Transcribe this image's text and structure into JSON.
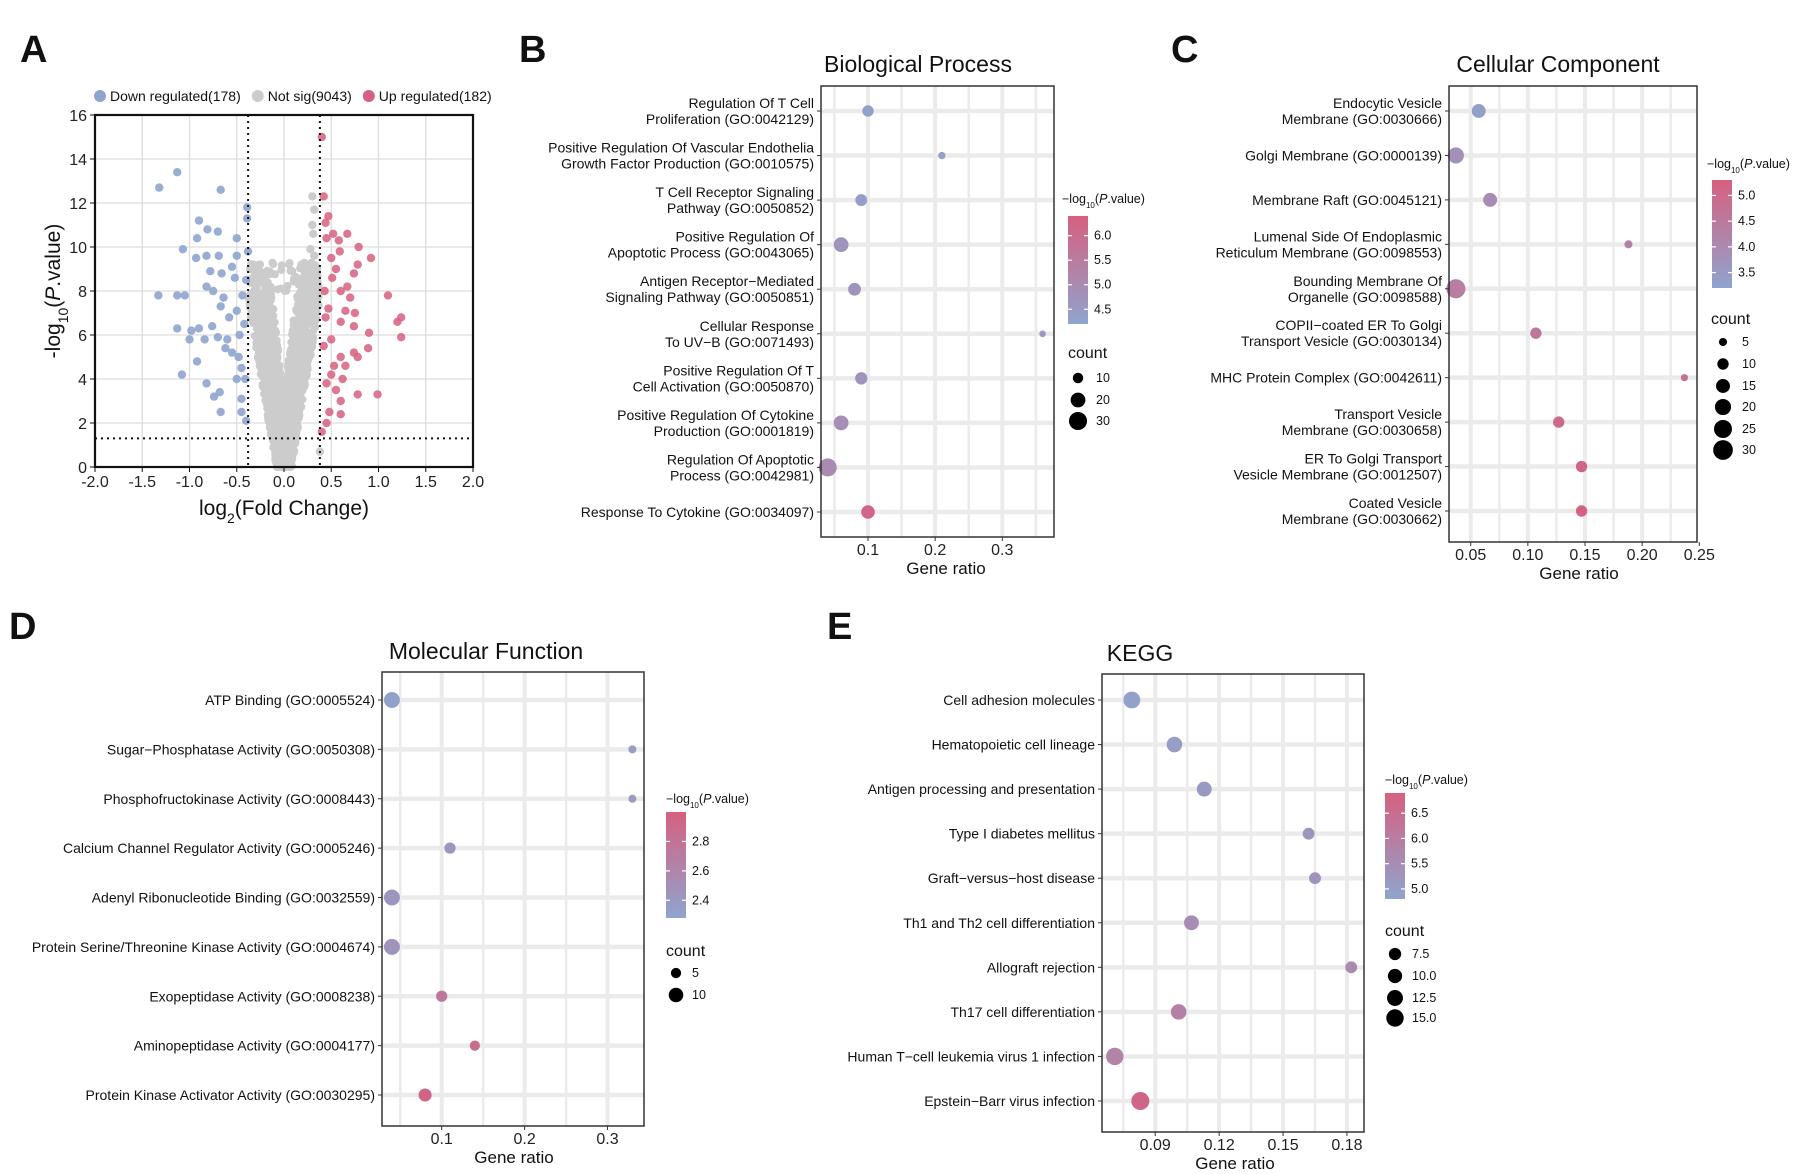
{
  "colors": {
    "down": "#8FA4CE",
    "notsig": "#CCCCCC",
    "up": "#D6607F",
    "low": "#8FA4CE",
    "high": "#D6607F",
    "grid": "#EBEBEB"
  },
  "chart_data": [
    {
      "panel": "A",
      "type": "scatter",
      "xlabel": "log2(Fold Change)",
      "ylabel": "-log10(P.value)",
      "xlim": [
        -2,
        2
      ],
      "ylim": [
        0,
        16
      ],
      "xticks": [
        -2.0,
        -1.5,
        -1.0,
        -0.5,
        0.0,
        0.5,
        1.0,
        1.5,
        2.0
      ],
      "yticks": [
        0,
        2,
        4,
        6,
        8,
        10,
        12,
        14,
        16
      ],
      "thresholds": {
        "log2fc": 0.38,
        "neglog10p": 1.3
      },
      "legend": [
        {
          "key": "down",
          "label": "Down regulated(178)"
        },
        {
          "key": "notsig",
          "label": "Not sig(9043)"
        },
        {
          "key": "up",
          "label": "Up regulated(182)"
        }
      ],
      "counts": {
        "down": 178,
        "notsig": 9043,
        "up": 182
      },
      "down": [
        [
          -1.13,
          13.4
        ],
        [
          -1.32,
          12.7
        ],
        [
          -0.67,
          12.6
        ],
        [
          -0.39,
          11.8
        ],
        [
          -0.39,
          11.3
        ],
        [
          -0.9,
          11.2
        ],
        [
          -0.81,
          10.8
        ],
        [
          -0.92,
          10.4
        ],
        [
          -0.7,
          10.7
        ],
        [
          -1.07,
          9.9
        ],
        [
          -0.93,
          9.5
        ],
        [
          -0.82,
          9.6
        ],
        [
          -0.69,
          9.6
        ],
        [
          -0.5,
          10.4
        ],
        [
          -0.5,
          9.6
        ],
        [
          -0.38,
          9.8
        ],
        [
          -0.78,
          8.9
        ],
        [
          -0.66,
          8.8
        ],
        [
          -0.82,
          8.2
        ],
        [
          -0.75,
          8.0
        ],
        [
          -1.33,
          7.8
        ],
        [
          -1.13,
          7.8
        ],
        [
          -1.05,
          7.8
        ],
        [
          -0.64,
          7.7
        ],
        [
          -0.67,
          7.3
        ],
        [
          -0.5,
          7.1
        ],
        [
          -1.13,
          6.3
        ],
        [
          -0.98,
          6.2
        ],
        [
          -0.9,
          6.3
        ],
        [
          -0.76,
          6.4
        ],
        [
          -1.0,
          5.8
        ],
        [
          -0.84,
          5.8
        ],
        [
          -0.7,
          5.9
        ],
        [
          -0.6,
          5.8
        ],
        [
          -0.55,
          5.2
        ],
        [
          -0.92,
          4.8
        ],
        [
          -1.08,
          4.2
        ],
        [
          -0.45,
          4.5
        ],
        [
          -0.82,
          3.8
        ],
        [
          -0.74,
          3.2
        ],
        [
          -0.68,
          3.4
        ],
        [
          -0.67,
          2.5
        ],
        [
          -0.45,
          2.5
        ],
        [
          -0.4,
          2.1
        ],
        [
          -0.45,
          3.1
        ],
        [
          -0.5,
          4.0
        ],
        [
          -0.48,
          5.0
        ],
        [
          -0.42,
          6.5
        ],
        [
          -0.44,
          7.8
        ],
        [
          -0.4,
          8.5
        ],
        [
          -0.58,
          6.8
        ],
        [
          -0.62,
          5.4
        ],
        [
          -0.52,
          8.6
        ],
        [
          -0.47,
          6.0
        ],
        [
          -0.41,
          4.0
        ],
        [
          -0.55,
          9.1
        ]
      ],
      "up": [
        [
          0.4,
          15
        ],
        [
          0.42,
          12.3
        ],
        [
          0.47,
          11.4
        ],
        [
          0.44,
          11.1
        ],
        [
          0.52,
          10.6
        ],
        [
          0.67,
          10.6
        ],
        [
          0.45,
          10.4
        ],
        [
          0.58,
          10.3
        ],
        [
          0.79,
          10.0
        ],
        [
          0.59,
          9.8
        ],
        [
          0.5,
          9.5
        ],
        [
          0.92,
          9.5
        ],
        [
          0.78,
          9.2
        ],
        [
          0.55,
          9.0
        ],
        [
          0.74,
          8.8
        ],
        [
          0.51,
          8.6
        ],
        [
          0.67,
          8.2
        ],
        [
          1.1,
          7.8
        ],
        [
          0.6,
          8.0
        ],
        [
          0.7,
          7.7
        ],
        [
          1.24,
          6.8
        ],
        [
          1.2,
          6.6
        ],
        [
          0.75,
          7.0
        ],
        [
          0.65,
          7.1
        ],
        [
          0.6,
          6.6
        ],
        [
          0.74,
          6.4
        ],
        [
          0.9,
          6.1
        ],
        [
          1.24,
          5.9
        ],
        [
          0.89,
          5.4
        ],
        [
          0.74,
          5.2
        ],
        [
          0.78,
          5.0
        ],
        [
          0.6,
          5.0
        ],
        [
          0.65,
          4.6
        ],
        [
          0.5,
          4.2
        ],
        [
          0.62,
          4.0
        ],
        [
          0.99,
          3.3
        ],
        [
          0.78,
          3.3
        ],
        [
          0.6,
          3.0
        ],
        [
          0.6,
          2.4
        ],
        [
          0.45,
          2.0
        ],
        [
          0.4,
          1.6
        ],
        [
          0.48,
          2.5
        ],
        [
          0.45,
          3.8
        ],
        [
          0.42,
          5.5
        ],
        [
          0.44,
          6.8
        ],
        [
          0.43,
          8.0
        ],
        [
          0.55,
          3.5
        ],
        [
          0.5,
          5.8
        ],
        [
          0.47,
          7.2
        ],
        [
          0.53,
          4.6
        ]
      ],
      "notsig_extra": [
        [
          0.3,
          12.3
        ],
        [
          0.32,
          11.7
        ],
        [
          0.3,
          11.0
        ],
        [
          0.31,
          10.6
        ],
        [
          0.28,
          9.9
        ],
        [
          0.32,
          9.6
        ],
        [
          -0.36,
          9.0
        ],
        [
          -0.3,
          8.2
        ],
        [
          0.38,
          0.7
        ]
      ]
    },
    {
      "panel": "B",
      "type": "scatter",
      "title": "Biological Process",
      "xlabel": "Gene ratio",
      "xlim": [
        0.03,
        0.377
      ],
      "xticks": [
        0.1,
        0.2,
        0.3
      ],
      "color_title": "−log10(P.value)",
      "color_range": [
        4.2,
        6.4
      ],
      "color_ticks": [
        4.5,
        5.0,
        5.5,
        6.0
      ],
      "size_title": "count",
      "size_ticks": [
        10,
        20,
        30
      ],
      "terms": [
        {
          "label": [
            "Regulation Of T Cell",
            "Proliferation (GO:0042129)"
          ],
          "ratio": 0.1,
          "logp": 4.3,
          "count": 12
        },
        {
          "label": [
            "Positive Regulation Of Vascular Endothelia",
            "Growth Factor Production (GO:0010575)"
          ],
          "ratio": 0.21,
          "logp": 4.3,
          "count": 5
        },
        {
          "label": [
            "T Cell Receptor Signaling",
            "Pathway (GO:0050852)"
          ],
          "ratio": 0.09,
          "logp": 4.4,
          "count": 13
        },
        {
          "label": [
            "Positive Regulation Of",
            "Apoptotic Process (GO:0043065)"
          ],
          "ratio": 0.06,
          "logp": 4.7,
          "count": 20
        },
        {
          "label": [
            "Antigen Receptor−Mediated",
            "Signaling Pathway (GO:0050851)"
          ],
          "ratio": 0.08,
          "logp": 4.7,
          "count": 15
        },
        {
          "label": [
            "Cellular Response",
            "To UV−B (GO:0071493)"
          ],
          "ratio": 0.36,
          "logp": 4.6,
          "count": 4
        },
        {
          "label": [
            "Positive Regulation Of T",
            "Cell Activation (GO:0050870)"
          ],
          "ratio": 0.09,
          "logp": 4.7,
          "count": 14
        },
        {
          "label": [
            "Positive Regulation Of Cytokine",
            "Production (GO:0001819)"
          ],
          "ratio": 0.06,
          "logp": 4.9,
          "count": 20
        },
        {
          "label": [
            "Regulation Of Apoptotic",
            "Process (GO:0042981)"
          ],
          "ratio": 0.04,
          "logp": 5.0,
          "count": 30
        },
        {
          "label": [
            "Response To Cytokine (GO:0034097)"
          ],
          "ratio": 0.1,
          "logp": 6.2,
          "count": 17
        }
      ]
    },
    {
      "panel": "C",
      "type": "scatter",
      "title": "Cellular Component",
      "xlabel": "Gene ratio",
      "xlim": [
        0.031,
        0.248
      ],
      "xticks": [
        0.05,
        0.1,
        0.15,
        0.2,
        0.25
      ],
      "color_title": "−log10(P.value)",
      "color_range": [
        3.2,
        5.3
      ],
      "color_ticks": [
        3.5,
        4.0,
        4.5,
        5.0
      ],
      "size_title": "count",
      "size_ticks": [
        5,
        10,
        15,
        20,
        25,
        30
      ],
      "terms": [
        {
          "label": [
            "Endocytic Vesicle",
            "Membrane (GO:0030666)"
          ],
          "ratio": 0.057,
          "logp": 3.3,
          "count": 15
        },
        {
          "label": [
            "Golgi Membrane (GO:0000139)"
          ],
          "ratio": 0.037,
          "logp": 3.8,
          "count": 20
        },
        {
          "label": [
            "Membrane Raft (GO:0045121)"
          ],
          "ratio": 0.067,
          "logp": 3.9,
          "count": 15
        },
        {
          "label": [
            "Lumenal Side Of Endoplasmic",
            "Reticulum Membrane (GO:0098553)"
          ],
          "ratio": 0.188,
          "logp": 4.3,
          "count": 5
        },
        {
          "label": [
            "Bounding Membrane Of",
            "Organelle (GO:0098588)"
          ],
          "ratio": 0.037,
          "logp": 4.4,
          "count": 28
        },
        {
          "label": [
            "COPII−coated ER To Golgi",
            "Transport Vesicle (GO:0030134)"
          ],
          "ratio": 0.107,
          "logp": 4.6,
          "count": 10
        },
        {
          "label": [
            "MHC Protein Complex (GO:0042611)"
          ],
          "ratio": 0.237,
          "logp": 4.7,
          "count": 4
        },
        {
          "label": [
            "Transport Vesicle",
            "Membrane (GO:0030658)"
          ],
          "ratio": 0.127,
          "logp": 5.0,
          "count": 10
        },
        {
          "label": [
            "ER To Golgi Transport",
            "Vesicle Membrane (GO:0012507)"
          ],
          "ratio": 0.147,
          "logp": 5.1,
          "count": 10
        },
        {
          "label": [
            "Coated Vesicle",
            "Membrane (GO:0030662)"
          ],
          "ratio": 0.147,
          "logp": 5.2,
          "count": 10
        }
      ]
    },
    {
      "panel": "D",
      "type": "scatter",
      "title": "Molecular Function",
      "xlabel": "Gene ratio",
      "xlim": [
        0.028,
        0.344
      ],
      "xticks": [
        0.1,
        0.2,
        0.3
      ],
      "color_title": "−log10(P.value)",
      "color_range": [
        2.28,
        3.0
      ],
      "color_ticks": [
        2.4,
        2.6,
        2.8
      ],
      "size_title": "count",
      "size_ticks": [
        5,
        10
      ],
      "terms": [
        {
          "label": [
            "ATP Binding (GO:0005524)"
          ],
          "ratio": 0.04,
          "logp": 2.32,
          "count": 12
        },
        {
          "label": [
            "Sugar−Phosphatase Activity (GO:0050308)"
          ],
          "ratio": 0.33,
          "logp": 2.38,
          "count": 3
        },
        {
          "label": [
            "Phosphofructokinase Activity (GO:0008443)"
          ],
          "ratio": 0.33,
          "logp": 2.38,
          "count": 3
        },
        {
          "label": [
            "Calcium Channel Regulator Activity (GO:0005246)"
          ],
          "ratio": 0.11,
          "logp": 2.42,
          "count": 6
        },
        {
          "label": [
            "Adenyl Ribonucleotide Binding (GO:0032559)"
          ],
          "ratio": 0.04,
          "logp": 2.42,
          "count": 12
        },
        {
          "label": [
            "Protein Serine/Threonine Kinase Activity (GO:0004674)"
          ],
          "ratio": 0.04,
          "logp": 2.45,
          "count": 12
        },
        {
          "label": [
            "Exopeptidase Activity (GO:0008238)"
          ],
          "ratio": 0.1,
          "logp": 2.75,
          "count": 6
        },
        {
          "label": [
            "Aminopeptidase Activity (GO:0004177)"
          ],
          "ratio": 0.14,
          "logp": 2.85,
          "count": 5
        },
        {
          "label": [
            "Protein Kinase Activator Activity (GO:0030295)"
          ],
          "ratio": 0.08,
          "logp": 2.95,
          "count": 8
        }
      ]
    },
    {
      "panel": "E",
      "type": "scatter",
      "title": "KEGG",
      "xlabel": "Gene ratio",
      "xlim": [
        0.065,
        0.188
      ],
      "xticks": [
        0.09,
        0.12,
        0.15,
        0.18
      ],
      "color_title": "−log10(P.value)",
      "color_range": [
        4.8,
        6.9
      ],
      "color_ticks": [
        5.0,
        5.5,
        6.0,
        6.5
      ],
      "size_title": "count",
      "size_ticks": [
        7.5,
        10.0,
        12.5,
        15.0
      ],
      "terms": [
        {
          "label": [
            "Cell adhesion molecules"
          ],
          "ratio": 0.079,
          "logp": 4.9,
          "count": 14
        },
        {
          "label": [
            "Hematopoietic cell lineage"
          ],
          "ratio": 0.099,
          "logp": 5.0,
          "count": 12
        },
        {
          "label": [
            "Antigen processing and presentation"
          ],
          "ratio": 0.113,
          "logp": 5.1,
          "count": 11
        },
        {
          "label": [
            "Type I diabetes mellitus"
          ],
          "ratio": 0.162,
          "logp": 5.2,
          "count": 7
        },
        {
          "label": [
            "Graft−versus−host disease"
          ],
          "ratio": 0.165,
          "logp": 5.3,
          "count": 7
        },
        {
          "label": [
            "Th1 and Th2 cell differentiation"
          ],
          "ratio": 0.107,
          "logp": 5.5,
          "count": 11
        },
        {
          "label": [
            "Allograft rejection"
          ],
          "ratio": 0.182,
          "logp": 5.6,
          "count": 7
        },
        {
          "label": [
            "Th17 cell differentiation"
          ],
          "ratio": 0.101,
          "logp": 5.9,
          "count": 12
        },
        {
          "label": [
            "Human T−cell leukemia virus 1 infection"
          ],
          "ratio": 0.071,
          "logp": 5.8,
          "count": 15
        },
        {
          "label": [
            "Epstein−Barr virus infection"
          ],
          "ratio": 0.083,
          "logp": 6.7,
          "count": 16
        }
      ]
    }
  ]
}
